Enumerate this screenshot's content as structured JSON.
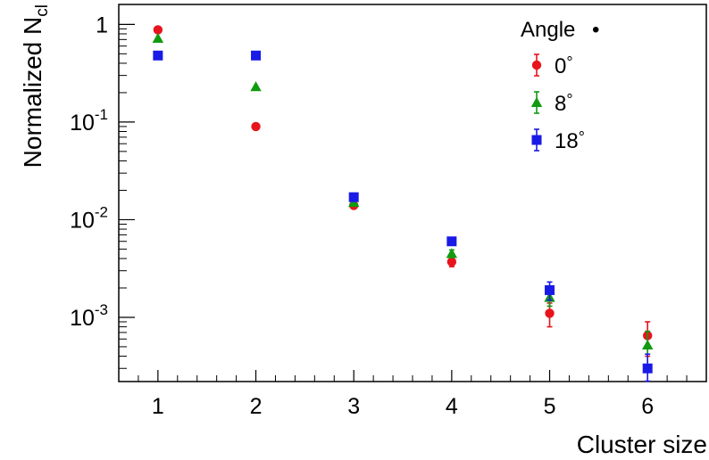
{
  "chart_data": {
    "type": "scatter",
    "xlabel": "Cluster size",
    "ylabel": "Normalized N",
    "ylabel_subscript": "cl",
    "xlim": [
      0.6,
      6.6
    ],
    "ylim": [
      0.00022,
      1.6
    ],
    "yscale": "log",
    "x": [
      1,
      2,
      3,
      4,
      5,
      6
    ],
    "x_tick_labels": [
      "1",
      "2",
      "3",
      "4",
      "5",
      "6"
    ],
    "y_ticks": [
      {
        "value": 1,
        "base": "1",
        "exp": ""
      },
      {
        "value": 0.1,
        "base": "10",
        "exp": "-1"
      },
      {
        "value": 0.01,
        "base": "10",
        "exp": "-2"
      },
      {
        "value": 0.001,
        "base": "10",
        "exp": "-3"
      }
    ],
    "legend": {
      "title": "Angle",
      "title_marker": "•",
      "position": "top-right"
    },
    "grid": false,
    "series": [
      {
        "name": "0°",
        "label_value": "0",
        "color": "#e8141c",
        "marker": "circle",
        "values": [
          0.88,
          0.09,
          0.014,
          0.0037,
          0.0011,
          0.00065
        ],
        "err": [
          0,
          0,
          0,
          0.0004,
          0.0003,
          0.00025
        ]
      },
      {
        "name": "8°",
        "label_value": "8",
        "color": "#109a10",
        "marker": "triangle",
        "values": [
          0.72,
          0.23,
          0.015,
          0.0045,
          0.0016,
          0.00052
        ],
        "err": [
          0,
          0,
          0,
          0.0004,
          0.0003,
          0.0002
        ]
      },
      {
        "name": "18°",
        "label_value": "18",
        "color": "#1a1ae6",
        "marker": "square",
        "values": [
          0.48,
          0.48,
          0.017,
          0.006,
          0.0019,
          0.0003
        ],
        "err": [
          0,
          0,
          0,
          0.0005,
          0.0004,
          0.00012
        ]
      }
    ]
  }
}
